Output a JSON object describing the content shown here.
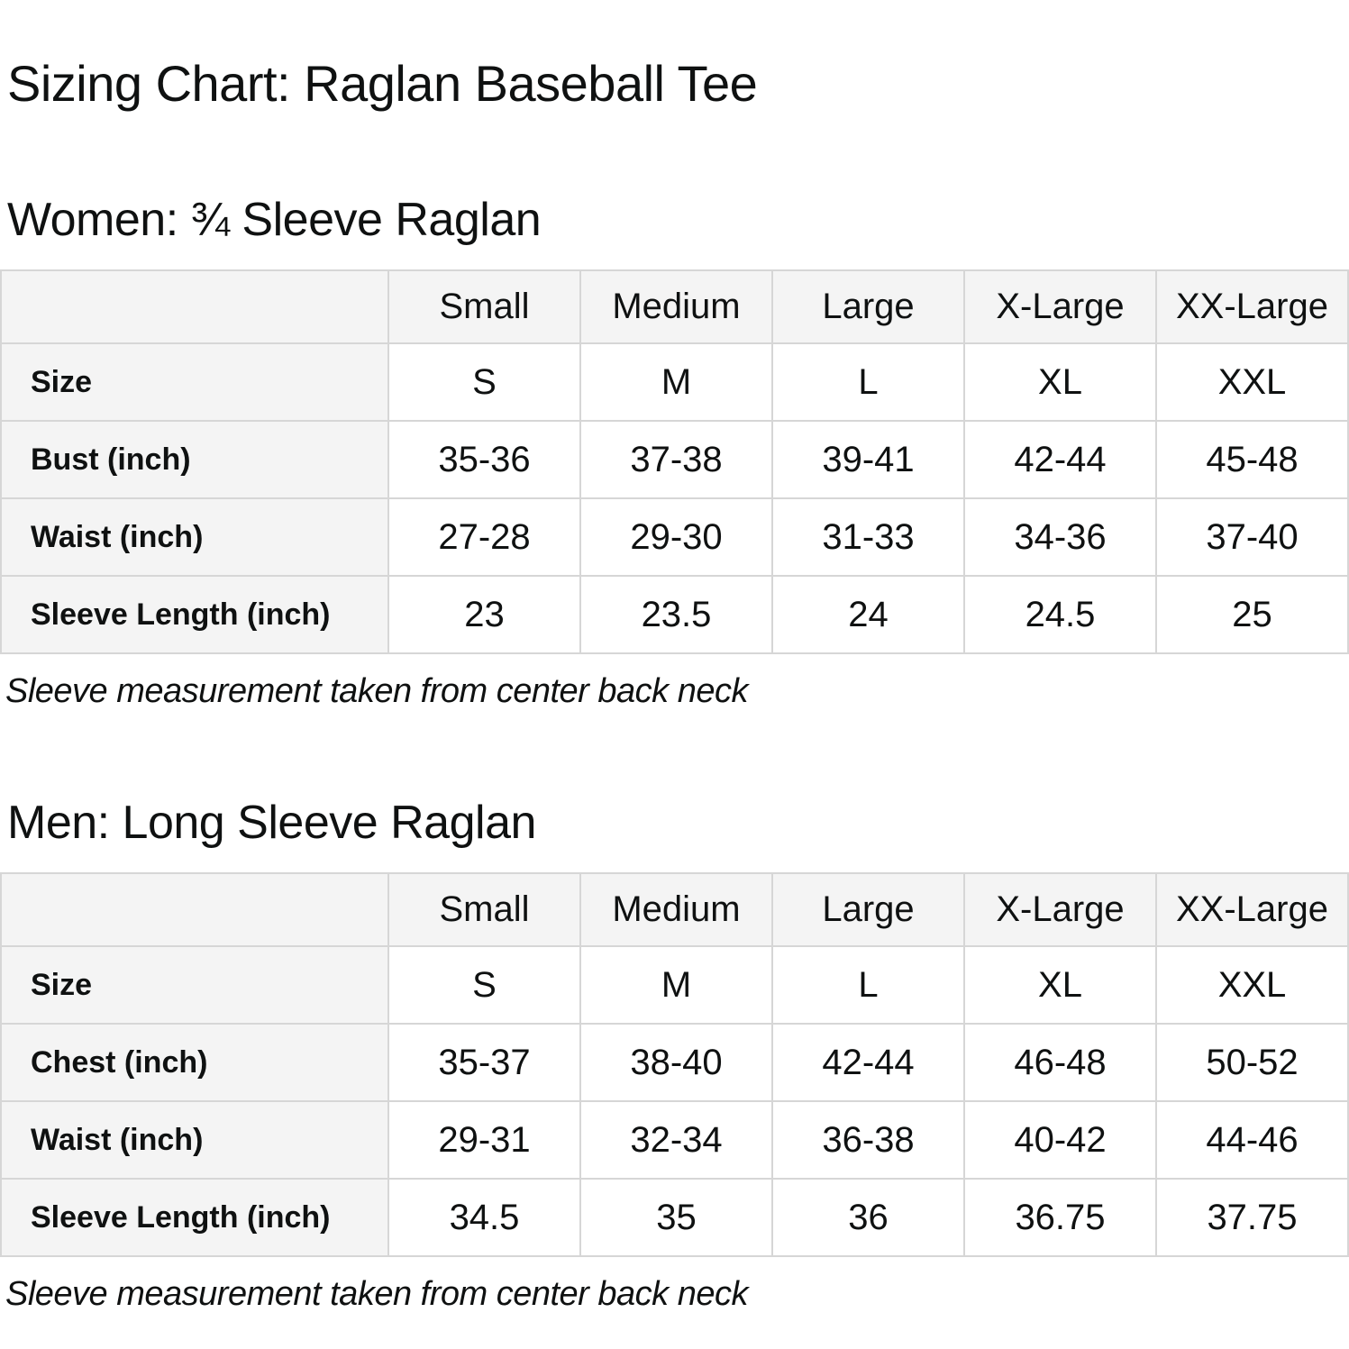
{
  "page": {
    "title": "Sizing Chart: Raglan Baseball Tee"
  },
  "colors": {
    "shaded_cell_bg": "#f4f4f4",
    "table_border": "#d6d6d6",
    "text": "#0f1111",
    "page_bg": "#ffffff"
  },
  "sections": [
    {
      "heading": "Women: ¾ Sleeve Raglan",
      "table": {
        "columns": [
          "Small",
          "Medium",
          "Large",
          "X-Large",
          "XX-Large"
        ],
        "rows": [
          {
            "label": "Size",
            "values": [
              "S",
              "M",
              "L",
              "XL",
              "XXL"
            ]
          },
          {
            "label": "Bust (inch)",
            "values": [
              "35-36",
              "37-38",
              "39-41",
              "42-44",
              "45-48"
            ]
          },
          {
            "label": "Waist (inch)",
            "values": [
              "27-28",
              "29-30",
              "31-33",
              "34-36",
              "37-40"
            ]
          },
          {
            "label": "Sleeve Length (inch)",
            "values": [
              "23",
              "23.5",
              "24",
              "24.5",
              "25"
            ]
          }
        ]
      },
      "note": "Sleeve measurement taken from center back neck"
    },
    {
      "heading": "Men: Long Sleeve Raglan",
      "table": {
        "columns": [
          "Small",
          "Medium",
          "Large",
          "X-Large",
          "XX-Large"
        ],
        "rows": [
          {
            "label": "Size",
            "values": [
              "S",
              "M",
              "L",
              "XL",
              "XXL"
            ]
          },
          {
            "label": "Chest (inch)",
            "values": [
              "35-37",
              "38-40",
              "42-44",
              "46-48",
              "50-52"
            ]
          },
          {
            "label": "Waist (inch)",
            "values": [
              "29-31",
              "32-34",
              "36-38",
              "40-42",
              "44-46"
            ]
          },
          {
            "label": "Sleeve Length (inch)",
            "values": [
              "34.5",
              "35",
              "36",
              "36.75",
              "37.75"
            ]
          }
        ]
      },
      "note": "Sleeve measurement taken from center back neck"
    }
  ]
}
